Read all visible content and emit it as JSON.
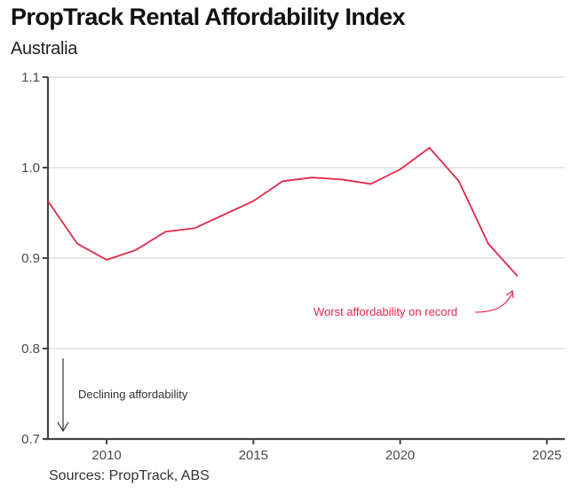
{
  "header": {
    "title": "PropTrack Rental Affordability Index",
    "subtitle": "Australia"
  },
  "footer": {
    "source": "Sources: PropTrack, ABS"
  },
  "colors": {
    "series": "#e0294a",
    "axis": "#444444",
    "grid": "#d9d9d9",
    "annotation_dark": "#333333"
  },
  "chart_data": {
    "type": "line",
    "title": "PropTrack Rental Affordability Index",
    "subtitle": "Australia",
    "xlabel": "",
    "ylabel": "",
    "xlim": [
      2008,
      2026
    ],
    "ylim": [
      0.7,
      1.1
    ],
    "grid": true,
    "legend": "none",
    "x_ticks": [
      2010,
      2015,
      2020,
      2025
    ],
    "x_tick_labels": [
      "2010",
      "2015",
      "2020",
      "2025"
    ],
    "y_ticks": [
      0.7,
      0.8,
      0.9,
      1.0,
      1.1
    ],
    "y_tick_labels": [
      "0.7",
      "0.8",
      "0.9",
      "1.0",
      "1.1"
    ],
    "series": [
      {
        "name": "Rental Affordability Index",
        "x": [
          2008,
          2009,
          2010,
          2011,
          2012,
          2013,
          2014,
          2015,
          2016,
          2017,
          2018,
          2019,
          2020,
          2021,
          2022,
          2023,
          2024
        ],
        "values": [
          0.963,
          0.916,
          0.898,
          0.909,
          0.929,
          0.933,
          0.948,
          0.963,
          0.985,
          0.989,
          0.987,
          0.982,
          0.998,
          1.022,
          0.985,
          0.916,
          0.88
        ]
      }
    ],
    "annotations": [
      {
        "text": "Worst affordability on record",
        "points_to": {
          "x": 2024,
          "y": 0.88
        },
        "color": "#e0294a"
      },
      {
        "text": "Declining affordability",
        "arrow": "down",
        "color": "#333333"
      }
    ]
  }
}
